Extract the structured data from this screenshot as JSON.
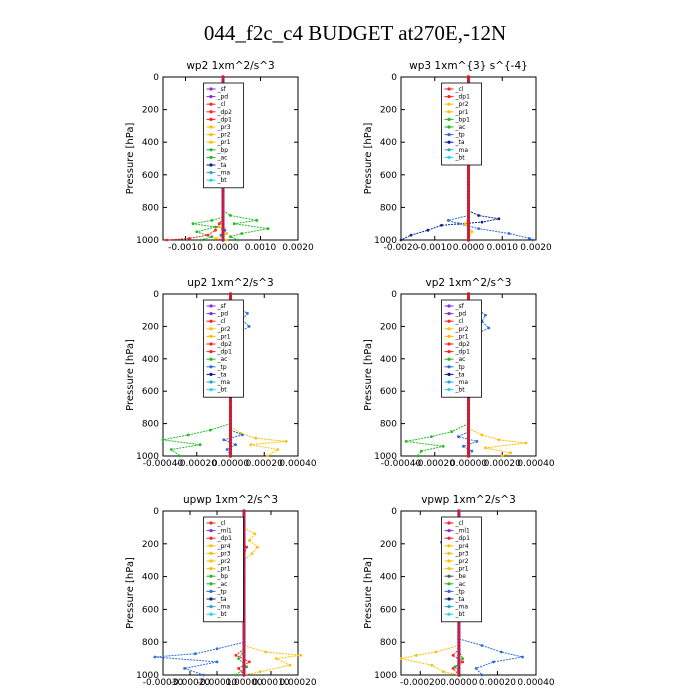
{
  "figure_title": "044_f2c_c4  BUDGET at270E,-12N",
  "colors": {
    "sf": "#8a2be2",
    "pd": "#8a2be2",
    "cl": "#ff2020",
    "dp": "#ff2020",
    "pr": "#ffc000",
    "bp": "#22bb22",
    "ac": "#22bb22",
    "tp": "#2a6edb",
    "ta": "#0a1f8f",
    "ma": "#27a8c9",
    "bt": "#27d0ff",
    "ml": "#8a2be2"
  },
  "chart_data": [
    {
      "type": "line",
      "title": "wp2   1xm^2/s^3",
      "ylabel": "Pressure  [hPa]",
      "xlim": [
        -0.0016,
        0.002
      ],
      "ylim": [
        1000,
        0
      ],
      "x_ticks": [
        -0.001,
        0.0,
        0.001,
        0.002
      ],
      "x_tick_labels": [
        "-0.0010",
        "0.0000",
        "0.0010",
        "0.0020"
      ],
      "y_ticks": [
        0,
        200,
        400,
        600,
        800,
        1000
      ],
      "y_tick_labels": [
        "0",
        "200",
        "400",
        "600",
        "800",
        "1000"
      ],
      "legend": [
        "_sf",
        "_pd",
        "_cl",
        "_dp2",
        "_dp1",
        "_pr3",
        "_pr2",
        "_pr1",
        "_bp",
        "_ac",
        "_ta",
        "_ma",
        "_bt"
      ],
      "series": [
        {
          "key": "_ac",
          "color": "#22bb22",
          "pressure": [
            820,
            850,
            880,
            900,
            930,
            960,
            980,
            1000
          ],
          "values": [
            0.0,
            0.0002,
            0.0009,
            0.0003,
            0.0012,
            0.0005,
            0.0002,
            0.0004
          ]
        },
        {
          "key": "_bp",
          "color": "#22bb22",
          "pressure": [
            860,
            880,
            900,
            920,
            950,
            980,
            1000
          ],
          "values": [
            0.0,
            -0.0003,
            -0.0008,
            -0.0002,
            -0.0007,
            -0.0003,
            -0.0006
          ]
        },
        {
          "key": "_dp2",
          "color": "#ff2020",
          "pressure": [
            870,
            900,
            940,
            970,
            990,
            1000
          ],
          "values": [
            0.0,
            -0.0001,
            -0.0002,
            -0.0004,
            -0.0009,
            -0.0015
          ]
        },
        {
          "key": "_pr2",
          "color": "#ffc000",
          "pressure": [
            880,
            920,
            960,
            990,
            1000
          ],
          "values": [
            0.0,
            -0.0001,
            0.0001,
            -0.0002,
            0.0001
          ]
        },
        {
          "key": "_tp",
          "color": "#2a6edb",
          "pressure": [
            900,
            940,
            970,
            1000
          ],
          "values": [
            0.0,
            5e-05,
            -5e-05,
            0.0
          ]
        },
        {
          "key": "_sf",
          "color": "#8a2be2",
          "pressure": [
            0,
            1000
          ],
          "values": [
            0.0,
            0.0
          ]
        }
      ]
    },
    {
      "type": "line",
      "title": "wp3   1xm^{3} s^{-4}",
      "ylabel": "Pressure  [hPa]",
      "xlim": [
        -0.002,
        0.002
      ],
      "ylim": [
        1000,
        0
      ],
      "x_ticks": [
        -0.002,
        -0.001,
        0.0,
        0.001,
        0.002
      ],
      "x_tick_labels": [
        "-0.0020",
        "-0.0010",
        "0.0000",
        "0.0010",
        "0.0020"
      ],
      "y_ticks": [
        0,
        200,
        400,
        600,
        800,
        1000
      ],
      "y_tick_labels": [
        "0",
        "200",
        "400",
        "600",
        "800",
        "1000"
      ],
      "legend": [
        "_cl",
        "_dp1",
        "_pr2",
        "_pr1",
        "_bp1",
        "_ac",
        "_tp",
        "_ta",
        "_ma",
        "_bt"
      ],
      "series": [
        {
          "key": "_ta",
          "color": "#0a1f8f",
          "pressure": [
            820,
            850,
            870,
            890,
            910,
            940,
            970,
            1000
          ],
          "values": [
            0.0,
            0.0003,
            0.0009,
            0.0004,
            -0.0008,
            -0.0012,
            -0.0017,
            -0.002
          ]
        },
        {
          "key": "_tp",
          "color": "#2a6edb",
          "pressure": [
            850,
            880,
            900,
            930,
            960,
            990,
            1000
          ],
          "values": [
            0.0,
            -0.0006,
            -0.0003,
            0.0003,
            0.0012,
            0.0018,
            0.0019
          ]
        },
        {
          "key": "_pr2",
          "color": "#ffc000",
          "pressure": [
            860,
            900,
            950,
            1000
          ],
          "values": [
            0.0,
            -0.0001,
            0.0001,
            0.0
          ]
        },
        {
          "key": "_cl",
          "color": "#ff2020",
          "pressure": [
            0,
            1000
          ],
          "values": [
            0.0,
            0.0
          ]
        }
      ]
    },
    {
      "type": "line",
      "title": "up2   1xm^2/s^3",
      "ylabel": "Pressure  [hPa]",
      "xlim": [
        -0.0004,
        0.0004
      ],
      "ylim": [
        1000,
        0
      ],
      "x_ticks": [
        -0.0004,
        -0.0002,
        0.0,
        0.0002,
        0.0004
      ],
      "x_tick_labels": [
        "-0.00040",
        "-0.00020",
        "0.00000",
        "0.00020",
        "0.00040"
      ],
      "y_ticks": [
        0,
        200,
        400,
        600,
        800,
        1000
      ],
      "y_tick_labels": [
        "0",
        "200",
        "400",
        "600",
        "800",
        "1000"
      ],
      "legend": [
        "_sf",
        "_pd",
        "_cl",
        "_pr2",
        "_pr1",
        "_dp2",
        "_dp1",
        "_ac",
        "_tp",
        "_ta",
        "_ma",
        "_bt"
      ],
      "series": [
        {
          "key": "_ac",
          "color": "#22bb22",
          "pressure": [
            60,
            100,
            130,
            160,
            190,
            220,
            250,
            280,
            320
          ],
          "values": [
            0.0,
            -3e-05,
            -8e-05,
            -0.00012,
            -0.0001,
            -0.00014,
            -9e-05,
            -5e-05,
            0.0
          ]
        },
        {
          "key": "_tp",
          "color": "#2a6edb",
          "pressure": [
            40,
            80,
            120,
            160,
            200,
            240,
            280,
            320
          ],
          "values": [
            0.0,
            4e-05,
            0.0001,
            7e-05,
            0.00011,
            5e-05,
            3e-05,
            0.0
          ]
        },
        {
          "key": "_ac2",
          "color": "#22bb22",
          "pressure": [
            800,
            840,
            870,
            900,
            930,
            960,
            1000
          ],
          "values": [
            0.0,
            -0.00012,
            -0.00025,
            -0.0004,
            -0.00018,
            -0.00035,
            -0.0003
          ]
        },
        {
          "key": "_pr2",
          "color": "#ffc000",
          "pressure": [
            820,
            860,
            890,
            910,
            930,
            960,
            1000
          ],
          "values": [
            0.0,
            6e-05,
            0.00015,
            0.00033,
            0.00012,
            0.00028,
            0.00022
          ]
        },
        {
          "key": "_tp2",
          "color": "#2a6edb",
          "pressure": [
            840,
            870,
            900,
            930,
            960,
            1000
          ],
          "values": [
            0.0,
            7e-05,
            -4e-05,
            3e-05,
            -2e-05,
            0.0
          ]
        },
        {
          "key": "_cl",
          "color": "#ff2020",
          "pressure": [
            0,
            1000
          ],
          "values": [
            0.0,
            0.0
          ]
        }
      ]
    },
    {
      "type": "line",
      "title": "vp2   1xm^2/s^3",
      "ylabel": "Pressure  [hPa]",
      "xlim": [
        -0.0004,
        0.0004
      ],
      "ylim": [
        1000,
        0
      ],
      "x_ticks": [
        -0.0004,
        -0.0002,
        0.0,
        0.0002,
        0.0004
      ],
      "x_tick_labels": [
        "-0.00040",
        "-0.00020",
        "0.00000",
        "0.00020",
        "0.00040"
      ],
      "y_ticks": [
        0,
        200,
        400,
        600,
        800,
        1000
      ],
      "y_tick_labels": [
        "0",
        "200",
        "400",
        "600",
        "800",
        "1000"
      ],
      "legend": [
        "_sf",
        "_pd",
        "_cl",
        "_pr2",
        "_pr1",
        "_dp2",
        "_dp1",
        "_ac",
        "_tp",
        "_ta",
        "_ma",
        "_bt"
      ],
      "series": [
        {
          "key": "_ac",
          "color": "#22bb22",
          "pressure": [
            60,
            100,
            140,
            180,
            220,
            260,
            300
          ],
          "values": [
            0.0,
            -5e-05,
            -9e-05,
            -7e-05,
            -0.00011,
            -6e-05,
            0.0
          ]
        },
        {
          "key": "_tp",
          "color": "#2a6edb",
          "pressure": [
            40,
            90,
            130,
            170,
            210,
            250,
            300
          ],
          "values": [
            0.0,
            5e-05,
            0.0001,
            8e-05,
            0.00012,
            4e-05,
            0.0
          ]
        },
        {
          "key": "_ac2",
          "color": "#22bb22",
          "pressure": [
            800,
            850,
            880,
            910,
            940,
            970,
            1000
          ],
          "values": [
            0.0,
            -0.0001,
            -0.00022,
            -0.00037,
            -0.00015,
            -0.00028,
            -0.0003
          ]
        },
        {
          "key": "_pr2",
          "color": "#ffc000",
          "pressure": [
            830,
            870,
            900,
            920,
            950,
            980,
            1000
          ],
          "values": [
            0.0,
            8e-05,
            0.00018,
            0.00034,
            0.0001,
            0.00025,
            0.0002
          ]
        },
        {
          "key": "_tp2",
          "color": "#2a6edb",
          "pressure": [
            850,
            880,
            910,
            940,
            970,
            1000
          ],
          "values": [
            0.0,
            -6e-05,
            5e-05,
            -3e-05,
            2e-05,
            0.0
          ]
        },
        {
          "key": "_cl",
          "color": "#ff2020",
          "pressure": [
            0,
            1000
          ],
          "values": [
            0.0,
            0.0
          ]
        }
      ]
    },
    {
      "type": "line",
      "title": "upwp   1xm^2/s^3",
      "ylabel": "Pressure  [hPa]",
      "xlim": [
        -0.0003,
        0.0002
      ],
      "ylim": [
        1000,
        0
      ],
      "x_ticks": [
        -0.0003,
        -0.0002,
        -0.0001,
        0.0,
        0.0001,
        0.0002
      ],
      "x_tick_labels": [
        "-0.00030",
        "-0.00020",
        "-0.00010",
        "0.00000",
        "0.00010",
        "0.00020"
      ],
      "y_ticks": [
        0,
        200,
        400,
        600,
        800,
        1000
      ],
      "y_tick_labels": [
        "0",
        "200",
        "400",
        "600",
        "800",
        "1000"
      ],
      "legend": [
        "_cl",
        "_ml1",
        "_dp1",
        "_pr4",
        "_pr3",
        "_pr2",
        "_pr1",
        "_bp",
        "_ac",
        "_tp",
        "_ta",
        "_ma",
        "_bt"
      ],
      "series": [
        {
          "key": "_tp",
          "color": "#2a6edb",
          "pressure": [
            120,
            150,
            180,
            210,
            240,
            260,
            290
          ],
          "values": [
            0.0,
            -4e-05,
            -7e-05,
            -3e-05,
            -6e-05,
            -2e-05,
            0.0
          ]
        },
        {
          "key": "_pr2",
          "color": "#ffc000",
          "pressure": [
            100,
            140,
            180,
            220,
            260,
            300
          ],
          "values": [
            0.0,
            4e-05,
            2e-05,
            5e-05,
            3e-05,
            0.0
          ]
        },
        {
          "key": "_dp1",
          "color": "#ff2020",
          "pressure": [
            120,
            170,
            220,
            270
          ],
          "values": [
            0.0,
            -2e-05,
            1e-05,
            0.0
          ]
        },
        {
          "key": "_tp2",
          "color": "#2a6edb",
          "pressure": [
            800,
            840,
            870,
            890,
            920,
            960,
            1000
          ],
          "values": [
            0.0,
            -0.0001,
            -0.00018,
            -0.00033,
            -0.0001,
            -0.00022,
            -0.00015
          ]
        },
        {
          "key": "_pr3",
          "color": "#ffc000",
          "pressure": [
            820,
            860,
            880,
            900,
            940,
            980,
            1000
          ],
          "values": [
            0.0,
            8e-05,
            0.00021,
            0.00012,
            0.00017,
            6e-05,
            0.0
          ]
        },
        {
          "key": "_bp",
          "color": "#22bb22",
          "pressure": [
            850,
            900,
            950,
            1000
          ],
          "values": [
            0.0,
            -2e-05,
            1e-05,
            -3e-05
          ]
        },
        {
          "key": "_dp1b",
          "color": "#ff2020",
          "pressure": [
            840,
            880,
            920,
            960,
            1000
          ],
          "values": [
            0.0,
            -3e-05,
            2e-05,
            -2e-05,
            0.0
          ]
        },
        {
          "key": "_cl",
          "color": "#8a2be2",
          "pressure": [
            0,
            1000
          ],
          "values": [
            0.0,
            0.0
          ]
        }
      ]
    },
    {
      "type": "line",
      "title": "vpwp   1xm^2/s^3",
      "ylabel": "Pressure  [hPa]",
      "xlim": [
        -0.0003,
        0.0004
      ],
      "ylim": [
        1000,
        0
      ],
      "x_ticks": [
        -0.0002,
        0.0,
        0.0002,
        0.0004
      ],
      "x_tick_labels": [
        "-0.00020",
        "0.00000",
        "0.00020",
        "0.00040"
      ],
      "y_ticks": [
        0,
        200,
        400,
        600,
        800,
        1000
      ],
      "y_tick_labels": [
        "0",
        "200",
        "400",
        "600",
        "800",
        "1000"
      ],
      "legend": [
        "_cl",
        "_ml1",
        "_dp1",
        "_pr4",
        "_pr3",
        "_pr2",
        "_pr1",
        "_be",
        "_ac",
        "_tp",
        "_ta",
        "_ma",
        "_bt"
      ],
      "series": [
        {
          "key": "_tp",
          "color": "#2a6edb",
          "pressure": [
            130,
            160,
            190,
            220,
            250,
            280
          ],
          "values": [
            0.0,
            -5e-05,
            -9e-05,
            -4e-05,
            -7e-05,
            0.0
          ]
        },
        {
          "key": "_pr2",
          "color": "#ffc000",
          "pressure": [
            110,
            150,
            190,
            230,
            270,
            310
          ],
          "values": [
            0.0,
            5e-05,
            9e-05,
            4e-05,
            6e-05,
            -2e-05
          ]
        },
        {
          "key": "_tp2",
          "color": "#2a6edb",
          "pressure": [
            780,
            820,
            860,
            890,
            920,
            960,
            1000
          ],
          "values": [
            0.0,
            0.00012,
            0.00022,
            0.00033,
            0.00018,
            9e-05,
            0.00012
          ]
        },
        {
          "key": "_pr3",
          "color": "#ffc000",
          "pressure": [
            820,
            860,
            880,
            900,
            940,
            980,
            1000
          ],
          "values": [
            0.0,
            -0.00012,
            -0.00022,
            -0.0003,
            -0.00014,
            -8e-05,
            0.0
          ]
        },
        {
          "key": "_dp1",
          "color": "#ff2020",
          "pressure": [
            840,
            880,
            920,
            960,
            1000
          ],
          "values": [
            0.0,
            -3e-05,
            2e-05,
            -3e-05,
            0.0
          ]
        },
        {
          "key": "_bp",
          "color": "#22bb22",
          "pressure": [
            850,
            900,
            950,
            1000
          ],
          "values": [
            0.0,
            2e-05,
            -2e-05,
            1e-05
          ]
        },
        {
          "key": "_cl",
          "color": "#8a2be2",
          "pressure": [
            0,
            1000
          ],
          "values": [
            0.0,
            0.0
          ]
        }
      ]
    }
  ]
}
